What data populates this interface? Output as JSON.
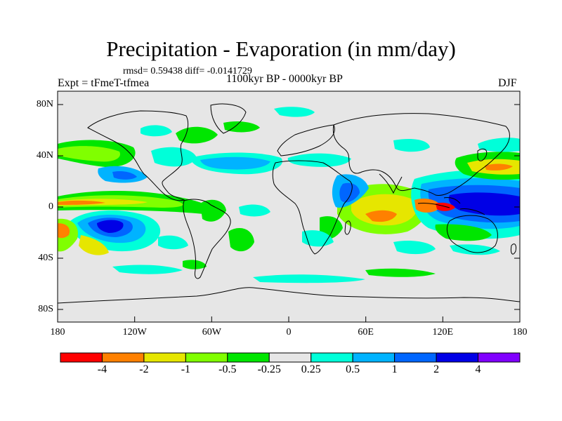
{
  "header": {
    "title": "Precipitation - Evaporation (in mm/day)",
    "stats": "rmsd= 0.59438  diff= -0.0141729",
    "experiment": "Expt = tFmeT-tfmea",
    "period": "1100kyr BP - 0000kyr BP",
    "season": "DJF"
  },
  "axes": {
    "lat_labels": [
      "80N",
      "40N",
      "0",
      "40S",
      "80S"
    ],
    "lon_labels": [
      "180",
      "120W",
      "60W",
      "0",
      "60E",
      "120E",
      "180"
    ]
  },
  "colorbar": {
    "labels": [
      "-4",
      "-2",
      "-1",
      "-0.5",
      "-0.25",
      "0.25",
      "0.5",
      "1",
      "2",
      "4"
    ],
    "colors": [
      "#ff0000",
      "#ff8000",
      "#e6e600",
      "#80ff00",
      "#00e600",
      "#e6e6e6",
      "#00ffd9",
      "#00b3ff",
      "#0066ff",
      "#0000e6",
      "#8000ff"
    ]
  }
}
